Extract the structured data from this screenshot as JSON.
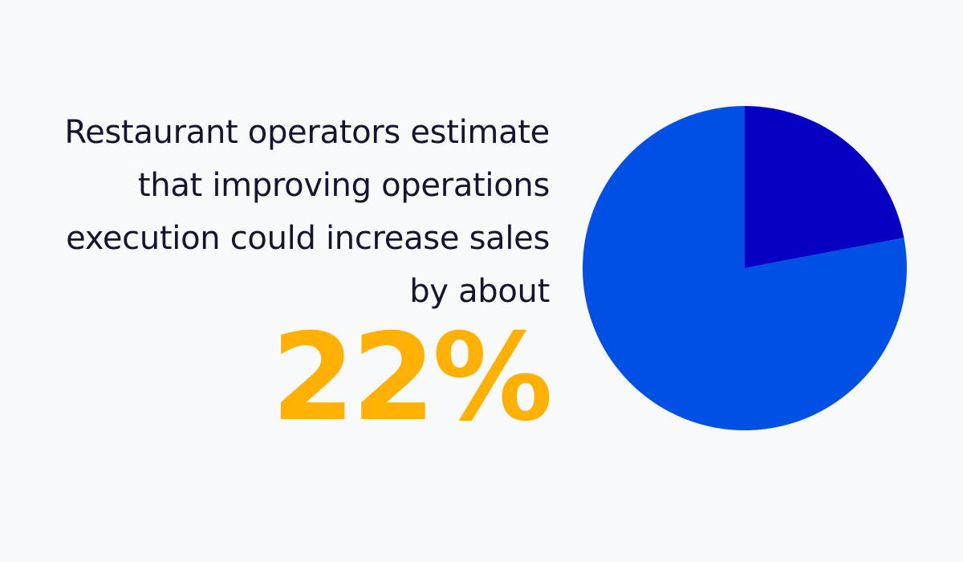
{
  "headline": {
    "line1": "Restaurant operators estimate",
    "line2": "that improving operations",
    "line3": "execution could increase sales",
    "line4": "by about"
  },
  "stat": "22%",
  "colors": {
    "background": "#f8f9fb",
    "text": "#14152e",
    "accent": "#ffb000",
    "slice_highlight": "#0500c4",
    "slice_rest": "#0050e6"
  },
  "chart_data": {
    "type": "pie",
    "title": "",
    "slices": [
      {
        "value": 22,
        "color": "#0500c4"
      },
      {
        "value": 78,
        "color": "#0050e6"
      }
    ],
    "start_angle_deg": 0,
    "direction": "clockwise",
    "legend": "none"
  }
}
